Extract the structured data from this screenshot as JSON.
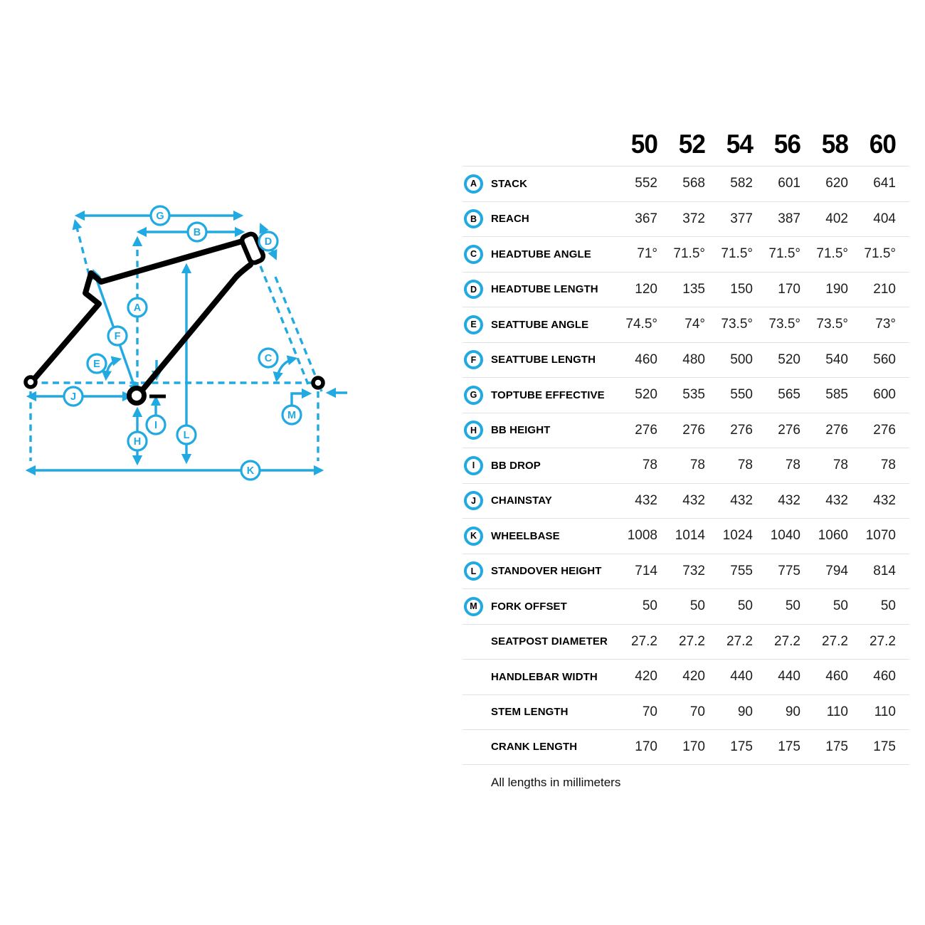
{
  "diagram": {
    "type": "bike-frame-geometry-diagram",
    "accent_color": "#21a9e2",
    "frame_color": "#000000",
    "labels": [
      "A",
      "B",
      "C",
      "D",
      "E",
      "F",
      "G",
      "H",
      "I",
      "J",
      "K",
      "L",
      "M"
    ]
  },
  "table": {
    "sizes": [
      "50",
      "52",
      "54",
      "56",
      "58",
      "60"
    ],
    "rows": [
      {
        "letter": "A",
        "label": "STACK",
        "values": [
          "552",
          "568",
          "582",
          "601",
          "620",
          "641"
        ]
      },
      {
        "letter": "B",
        "label": "REACH",
        "values": [
          "367",
          "372",
          "377",
          "387",
          "402",
          "404"
        ]
      },
      {
        "letter": "C",
        "label": "HEADTUBE ANGLE",
        "values": [
          "71°",
          "71.5°",
          "71.5°",
          "71.5°",
          "71.5°",
          "71.5°"
        ]
      },
      {
        "letter": "D",
        "label": "HEADTUBE LENGTH",
        "values": [
          "120",
          "135",
          "150",
          "170",
          "190",
          "210"
        ]
      },
      {
        "letter": "E",
        "label": "SEATTUBE ANGLE",
        "values": [
          "74.5°",
          "74°",
          "73.5°",
          "73.5°",
          "73.5°",
          "73°"
        ]
      },
      {
        "letter": "F",
        "label": "SEATTUBE LENGTH",
        "values": [
          "460",
          "480",
          "500",
          "520",
          "540",
          "560"
        ]
      },
      {
        "letter": "G",
        "label": "TOPTUBE EFFECTIVE",
        "values": [
          "520",
          "535",
          "550",
          "565",
          "585",
          "600"
        ]
      },
      {
        "letter": "H",
        "label": "BB HEIGHT",
        "values": [
          "276",
          "276",
          "276",
          "276",
          "276",
          "276"
        ]
      },
      {
        "letter": "I",
        "label": "BB DROP",
        "values": [
          "78",
          "78",
          "78",
          "78",
          "78",
          "78"
        ]
      },
      {
        "letter": "J",
        "label": "CHAINSTAY",
        "values": [
          "432",
          "432",
          "432",
          "432",
          "432",
          "432"
        ]
      },
      {
        "letter": "K",
        "label": "WHEELBASE",
        "values": [
          "1008",
          "1014",
          "1024",
          "1040",
          "1060",
          "1070"
        ]
      },
      {
        "letter": "L",
        "label": "STANDOVER HEIGHT",
        "values": [
          "714",
          "732",
          "755",
          "775",
          "794",
          "814"
        ]
      },
      {
        "letter": "M",
        "label": "FORK OFFSET",
        "values": [
          "50",
          "50",
          "50",
          "50",
          "50",
          "50"
        ]
      },
      {
        "letter": "",
        "label": "SEATPOST DIAMETER",
        "values": [
          "27.2",
          "27.2",
          "27.2",
          "27.2",
          "27.2",
          "27.2"
        ]
      },
      {
        "letter": "",
        "label": "HANDLEBAR WIDTH",
        "values": [
          "420",
          "420",
          "440",
          "440",
          "460",
          "460"
        ]
      },
      {
        "letter": "",
        "label": "STEM LENGTH",
        "values": [
          "70",
          "70",
          "90",
          "90",
          "110",
          "110"
        ]
      },
      {
        "letter": "",
        "label": "CRANK LENGTH",
        "values": [
          "170",
          "170",
          "175",
          "175",
          "175",
          "175"
        ]
      }
    ],
    "footnote": "All lengths in millimeters"
  }
}
